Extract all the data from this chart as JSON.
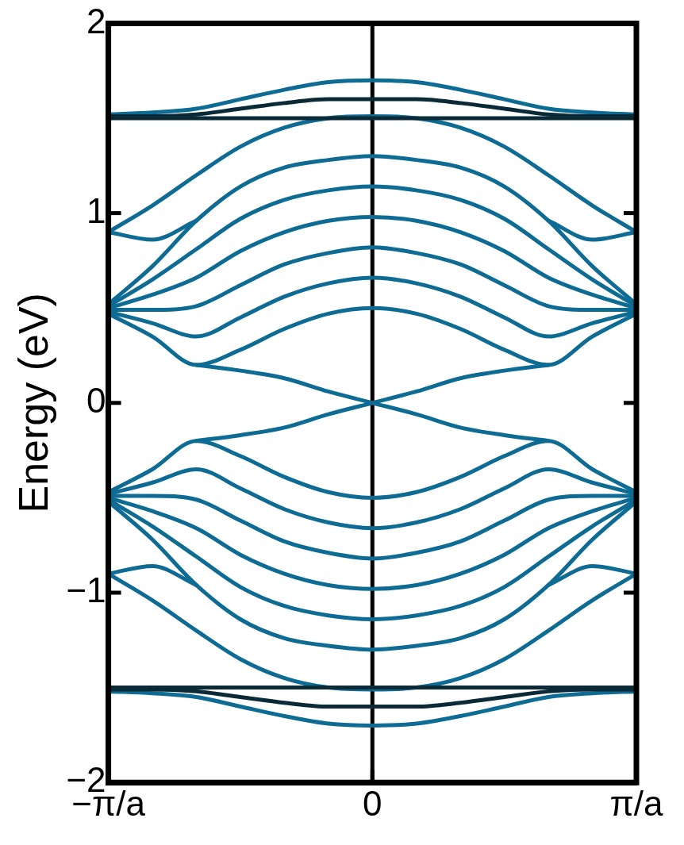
{
  "chart_data": {
    "type": "line",
    "ylabel": "Energy (eV)",
    "categories": [
      "−π/a",
      null,
      null,
      null,
      null,
      null,
      "0",
      null,
      null,
      null,
      null,
      null,
      "π/a"
    ],
    "ylim": [
      -2,
      2
    ],
    "yticks": [
      {
        "value": -2,
        "label": "−2"
      },
      {
        "value": -1,
        "label": "−1"
      },
      0,
      1,
      2
    ],
    "grid": false,
    "legend": false,
    "ref_lines": [
      {
        "axis": "x",
        "value": "0",
        "color": "#000000"
      }
    ],
    "series": [
      {
        "color": "#0e6b94",
        "values": [
          0.47,
          0.35,
          0.2,
          0.28,
          0.39,
          0.47,
          0.5,
          0.47,
          0.39,
          0.28,
          0.2,
          0.35,
          0.47
        ]
      },
      {
        "color": "#0e6b94",
        "values": [
          0.48,
          0.42,
          0.35,
          0.45,
          0.56,
          0.63,
          0.66,
          0.63,
          0.56,
          0.45,
          0.35,
          0.42,
          0.48
        ]
      },
      {
        "color": "#0e6b94",
        "values": [
          0.49,
          0.49,
          0.51,
          0.62,
          0.73,
          0.79,
          0.82,
          0.79,
          0.73,
          0.62,
          0.51,
          0.49,
          0.49
        ]
      },
      {
        "color": "#0e6b94",
        "values": [
          0.5,
          0.57,
          0.66,
          0.8,
          0.9,
          0.96,
          0.98,
          0.96,
          0.9,
          0.8,
          0.66,
          0.57,
          0.5
        ]
      },
      {
        "color": "#0e6b94",
        "values": [
          0.51,
          0.65,
          0.81,
          0.97,
          1.07,
          1.12,
          1.14,
          1.12,
          1.07,
          0.97,
          0.81,
          0.65,
          0.51
        ]
      },
      {
        "color": "#0e6b94",
        "values": [
          0.52,
          0.72,
          0.96,
          1.14,
          1.24,
          1.28,
          1.3,
          1.28,
          1.24,
          1.14,
          0.96,
          0.72,
          0.52
        ]
      },
      {
        "color": "#0e6b94",
        "values": [
          -0.47,
          -0.35,
          -0.2,
          -0.28,
          -0.39,
          -0.47,
          -0.5,
          -0.47,
          -0.39,
          -0.28,
          -0.2,
          -0.35,
          -0.47
        ]
      },
      {
        "color": "#0e6b94",
        "values": [
          -0.48,
          -0.42,
          -0.35,
          -0.45,
          -0.56,
          -0.63,
          -0.66,
          -0.63,
          -0.56,
          -0.45,
          -0.35,
          -0.42,
          -0.48
        ]
      },
      {
        "color": "#0e6b94",
        "values": [
          -0.49,
          -0.49,
          -0.51,
          -0.62,
          -0.73,
          -0.79,
          -0.82,
          -0.79,
          -0.73,
          -0.62,
          -0.51,
          -0.49,
          -0.49
        ]
      },
      {
        "color": "#0e6b94",
        "values": [
          -0.5,
          -0.57,
          -0.66,
          -0.8,
          -0.9,
          -0.96,
          -0.98,
          -0.96,
          -0.9,
          -0.8,
          -0.66,
          -0.57,
          -0.5
        ]
      },
      {
        "color": "#0e6b94",
        "values": [
          -0.51,
          -0.65,
          -0.81,
          -0.97,
          -1.07,
          -1.12,
          -1.14,
          -1.12,
          -1.07,
          -0.97,
          -0.81,
          -0.65,
          -0.51
        ]
      },
      {
        "color": "#0e6b94",
        "values": [
          -0.52,
          -0.72,
          -0.96,
          -1.14,
          -1.24,
          -1.28,
          -1.3,
          -1.28,
          -1.24,
          -1.14,
          -0.96,
          -0.72,
          -0.52
        ]
      },
      {
        "color": "#0a2a38",
        "values": [
          1.5,
          1.5,
          1.5,
          1.5,
          1.5,
          1.5,
          1.5,
          1.5,
          1.5,
          1.5,
          1.5,
          1.5,
          1.5
        ]
      },
      {
        "color": "#0a2a38",
        "values": [
          1.51,
          1.51,
          1.52,
          1.55,
          1.58,
          1.6,
          1.6,
          1.6,
          1.58,
          1.55,
          1.52,
          1.51,
          1.51
        ]
      },
      {
        "color": "#0e6b94",
        "values": [
          1.52,
          1.53,
          1.55,
          1.6,
          1.65,
          1.69,
          1.7,
          1.69,
          1.65,
          1.6,
          1.55,
          1.53,
          1.52
        ]
      },
      {
        "color": "#0a2a38",
        "values": [
          -1.5,
          -1.5,
          -1.5,
          -1.5,
          -1.5,
          -1.5,
          -1.5,
          -1.5,
          -1.5,
          -1.5,
          -1.5,
          -1.5,
          -1.5
        ]
      },
      {
        "color": "#0a2a38",
        "values": [
          -1.51,
          -1.51,
          -1.52,
          -1.55,
          -1.58,
          -1.6,
          -1.6,
          -1.6,
          -1.58,
          -1.55,
          -1.52,
          -1.51,
          -1.51
        ]
      },
      {
        "color": "#0e6b94",
        "values": [
          -1.52,
          -1.53,
          -1.55,
          -1.6,
          -1.65,
          -1.69,
          -1.7,
          -1.69,
          -1.65,
          -1.6,
          -1.55,
          -1.53,
          -1.52
        ]
      },
      {
        "color": "#0e6b94",
        "values": [
          null,
          null,
          0.2,
          0.17,
          0.13,
          0.06,
          0,
          -0.06,
          -0.13,
          -0.17,
          -0.2,
          null,
          null
        ]
      },
      {
        "color": "#0e6b94",
        "values": [
          null,
          null,
          -0.2,
          -0.17,
          -0.13,
          -0.06,
          0,
          0.06,
          0.13,
          0.17,
          0.2,
          null,
          null
        ]
      },
      {
        "color": "#0e6b94",
        "values": [
          0.9,
          1.04,
          1.2,
          1.35,
          1.45,
          1.5,
          1.51,
          1.5,
          1.45,
          1.35,
          1.2,
          1.04,
          0.9
        ]
      },
      {
        "color": "#0e6b94",
        "values": [
          -0.9,
          -1.04,
          -1.2,
          -1.35,
          -1.45,
          -1.5,
          -1.51,
          -1.5,
          -1.45,
          -1.35,
          -1.2,
          -1.04,
          -0.9
        ]
      },
      {
        "color": "#0e6b94",
        "values": [
          0.9,
          0.86,
          0.96,
          null,
          null,
          null,
          null,
          null,
          null,
          null,
          0.96,
          0.86,
          0.9
        ]
      },
      {
        "color": "#0e6b94",
        "values": [
          -0.9,
          -0.86,
          -0.96,
          null,
          null,
          null,
          null,
          null,
          null,
          null,
          -0.96,
          -0.86,
          -0.9
        ]
      }
    ]
  }
}
